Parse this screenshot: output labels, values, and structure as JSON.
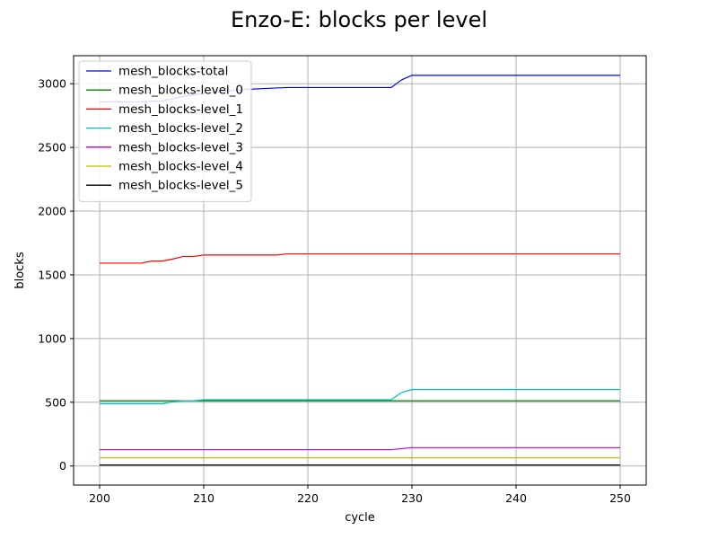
{
  "chart_data": {
    "type": "line",
    "title": "Enzo-E: blocks per level",
    "xlabel": "cycle",
    "ylabel": "blocks",
    "xlim": [
      197.5,
      252.5
    ],
    "ylim": [
      -150,
      3220
    ],
    "xticks": [
      200,
      210,
      220,
      230,
      240,
      250
    ],
    "yticks": [
      0,
      500,
      1000,
      1500,
      2000,
      2500,
      3000
    ],
    "grid": true,
    "legend_position": "upper-left",
    "series": [
      {
        "name": "mesh_blocks-total",
        "color": "#0000ff",
        "points": [
          [
            200,
            2858
          ],
          [
            202,
            2858
          ],
          [
            204,
            2858
          ],
          [
            206,
            2866
          ],
          [
            208,
            2900
          ],
          [
            210,
            2925
          ],
          [
            212,
            2940
          ],
          [
            214,
            2955
          ],
          [
            216,
            2963
          ],
          [
            218,
            2970
          ],
          [
            220,
            2970
          ],
          [
            222,
            2970
          ],
          [
            224,
            2970
          ],
          [
            226,
            2970
          ],
          [
            228,
            2970
          ],
          [
            229,
            3030
          ],
          [
            230,
            3066
          ],
          [
            235,
            3066
          ],
          [
            240,
            3066
          ],
          [
            245,
            3066
          ],
          [
            250,
            3066
          ]
        ]
      },
      {
        "name": "mesh_blocks-level_0",
        "color": "#008000",
        "points": [
          [
            200,
            512
          ],
          [
            250,
            512
          ]
        ]
      },
      {
        "name": "mesh_blocks-level_1",
        "color": "#ff0000",
        "points": [
          [
            200,
            1592
          ],
          [
            202,
            1592
          ],
          [
            204,
            1592
          ],
          [
            205,
            1608
          ],
          [
            206,
            1608
          ],
          [
            207,
            1624
          ],
          [
            208,
            1644
          ],
          [
            209,
            1644
          ],
          [
            210,
            1656
          ],
          [
            212,
            1656
          ],
          [
            214,
            1656
          ],
          [
            216,
            1656
          ],
          [
            217,
            1656
          ],
          [
            218,
            1664
          ],
          [
            220,
            1664
          ],
          [
            225,
            1664
          ],
          [
            230,
            1664
          ],
          [
            235,
            1664
          ],
          [
            240,
            1664
          ],
          [
            245,
            1664
          ],
          [
            250,
            1664
          ]
        ]
      },
      {
        "name": "mesh_blocks-level_2",
        "color": "#00bfbf",
        "points": [
          [
            200,
            488
          ],
          [
            202,
            488
          ],
          [
            204,
            488
          ],
          [
            206,
            488
          ],
          [
            207,
            504
          ],
          [
            208,
            512
          ],
          [
            209,
            512
          ],
          [
            210,
            520
          ],
          [
            215,
            520
          ],
          [
            220,
            520
          ],
          [
            225,
            520
          ],
          [
            228,
            520
          ],
          [
            229,
            576
          ],
          [
            230,
            600
          ],
          [
            235,
            600
          ],
          [
            240,
            600
          ],
          [
            245,
            600
          ],
          [
            250,
            600
          ]
        ]
      },
      {
        "name": "mesh_blocks-level_3",
        "color": "#bf00bf",
        "points": [
          [
            200,
            128
          ],
          [
            210,
            128
          ],
          [
            220,
            128
          ],
          [
            228,
            128
          ],
          [
            230,
            144
          ],
          [
            240,
            144
          ],
          [
            250,
            144
          ]
        ]
      },
      {
        "name": "mesh_blocks-level_4",
        "color": "#bfbf00",
        "points": [
          [
            200,
            64
          ],
          [
            250,
            64
          ]
        ]
      },
      {
        "name": "mesh_blocks-level_5",
        "color": "#000000",
        "points": [
          [
            200,
            8
          ],
          [
            250,
            8
          ]
        ]
      }
    ]
  }
}
